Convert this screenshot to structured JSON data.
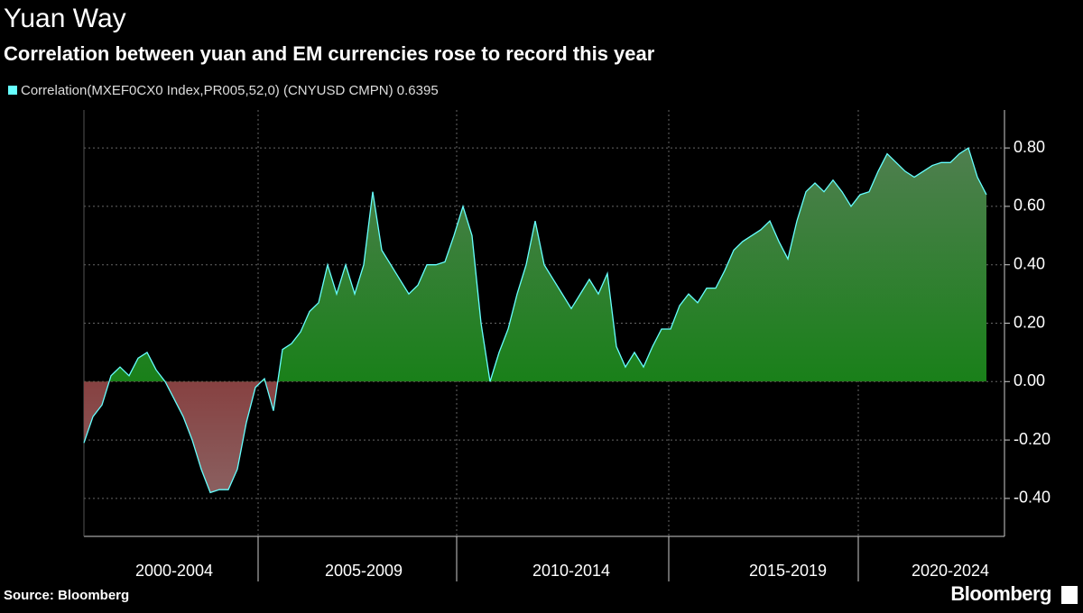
{
  "chart_data": {
    "type": "area",
    "title": "Yuan Way",
    "subtitle": "Correlation between yuan and EM currencies rose to record this year",
    "source": "Source: Bloomberg",
    "brand": "Bloomberg",
    "categories": [
      null,
      null,
      null,
      null,
      null,
      null,
      null,
      null,
      null,
      null,
      "2000-2004",
      null,
      null,
      null,
      null,
      null,
      null,
      null,
      null,
      null,
      null,
      null,
      null,
      null,
      null,
      null,
      null,
      null,
      null,
      null,
      null,
      "2005-2009",
      null,
      null,
      null,
      null,
      null,
      null,
      null,
      null,
      null,
      null,
      null,
      null,
      null,
      null,
      null,
      null,
      null,
      null,
      null,
      null,
      null,
      null,
      "2010-2014",
      null,
      null,
      null,
      null,
      null,
      null,
      null,
      null,
      null,
      null,
      null,
      null,
      null,
      null,
      null,
      null,
      null,
      null,
      null,
      null,
      null,
      null,
      null,
      "2015-2019",
      null,
      null,
      null,
      null,
      null,
      null,
      null,
      null,
      null,
      null,
      null,
      null,
      null,
      null,
      null,
      null,
      null,
      "2020-2024",
      null,
      null,
      null,
      null
    ],
    "series": [
      {
        "name": "Correlation(MXEF0CX0 Index,PR005,52,0) (CNYUSD CMPN) 0.6395",
        "color": "#66ffff",
        "positive_color": "#008000",
        "negative_color": "#800000",
        "values": [
          -0.21,
          -0.12,
          -0.08,
          0.02,
          0.05,
          0.02,
          0.08,
          0.1,
          0.04,
          0.0,
          -0.06,
          -0.12,
          -0.2,
          -0.3,
          -0.38,
          -0.37,
          -0.37,
          -0.3,
          -0.14,
          -0.02,
          0.01,
          -0.1,
          0.11,
          0.13,
          0.17,
          0.24,
          0.27,
          0.4,
          0.3,
          0.4,
          0.3,
          0.4,
          0.65,
          0.45,
          0.4,
          0.35,
          0.3,
          0.33,
          0.4,
          0.4,
          0.41,
          0.5,
          0.6,
          0.5,
          0.2,
          0.0,
          0.1,
          0.18,
          0.3,
          0.4,
          0.55,
          0.4,
          0.35,
          0.3,
          0.25,
          0.3,
          0.35,
          0.3,
          0.37,
          0.12,
          0.05,
          0.1,
          0.05,
          0.12,
          0.18,
          0.18,
          0.26,
          0.3,
          0.27,
          0.32,
          0.32,
          0.38,
          0.45,
          0.48,
          0.5,
          0.52,
          0.55,
          0.48,
          0.42,
          0.55,
          0.65,
          0.68,
          0.65,
          0.69,
          0.65,
          0.6,
          0.64,
          0.65,
          0.72,
          0.78,
          0.75,
          0.72,
          0.7,
          0.72,
          0.74,
          0.75,
          0.75,
          0.78,
          0.8,
          0.7,
          0.64
        ]
      }
    ],
    "ylim": [
      -0.53,
      0.93
    ],
    "yticks": [
      {
        "value": -0.4,
        "label": "-0.40"
      },
      {
        "value": -0.2,
        "label": "-0.20"
      },
      {
        "value": 0,
        "label": "0.00"
      },
      {
        "value": 0.2,
        "label": "0.20"
      },
      {
        "value": 0.4,
        "label": "0.40"
      },
      {
        "value": 0.6,
        "label": "0.60"
      },
      {
        "value": 0.8,
        "label": "0.80"
      }
    ],
    "grid": true
  }
}
